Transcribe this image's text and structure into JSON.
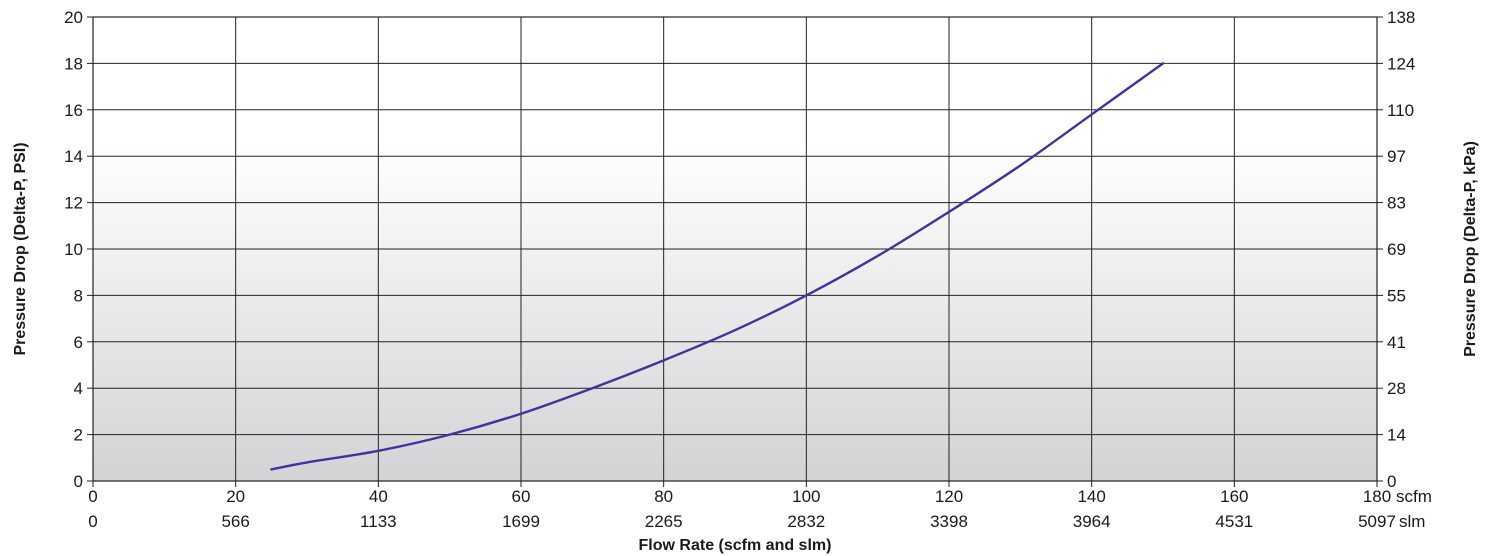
{
  "chart_data": {
    "type": "line",
    "subtitle": "",
    "xlabel": "Flow Rate (scfm and slm)",
    "ylabel_left": "Pressure Drop (Delta-P, PSI)",
    "ylabel_right": "Pressure Drop (Delta-P, kPa)",
    "x_primary_unit": "scfm",
    "x_secondary_unit": "slm",
    "xlim": [
      0,
      180
    ],
    "ylim": [
      0,
      20
    ],
    "grid": true,
    "x_ticks": [
      0,
      20,
      40,
      60,
      80,
      100,
      120,
      140,
      160,
      180
    ],
    "x_tick_labels_scfm": [
      "0",
      "20",
      "40",
      "60",
      "80",
      "100",
      "120",
      "140",
      "160",
      "180"
    ],
    "x_tick_labels_slm": [
      "0",
      "566",
      "1133",
      "1699",
      "2265",
      "2832",
      "3398",
      "3964",
      "4531",
      "5097"
    ],
    "y_ticks": [
      0,
      2,
      4,
      6,
      8,
      10,
      12,
      14,
      16,
      18,
      20
    ],
    "y_tick_labels_left": [
      "0",
      "2",
      "4",
      "6",
      "8",
      "10",
      "12",
      "14",
      "16",
      "18",
      "20"
    ],
    "y_tick_labels_right": [
      "0",
      "14",
      "28",
      "41",
      "55",
      "69",
      "83",
      "97",
      "110",
      "124",
      "138"
    ],
    "series": [
      {
        "color": "#4b2e9e",
        "x": [
          25,
          30,
          40,
          50,
          60,
          70,
          80,
          90,
          100,
          110,
          120,
          130,
          140,
          150
        ],
        "y": [
          0.5,
          0.8,
          1.3,
          2.0,
          2.9,
          4.0,
          5.2,
          6.5,
          8.0,
          9.7,
          11.6,
          13.6,
          15.8,
          18.0
        ]
      }
    ],
    "colors": {
      "line": "#4b2e9e",
      "grid": "#222222",
      "gradient_top": "#ffffff",
      "gradient_bottom": "#d3d3d6"
    }
  }
}
